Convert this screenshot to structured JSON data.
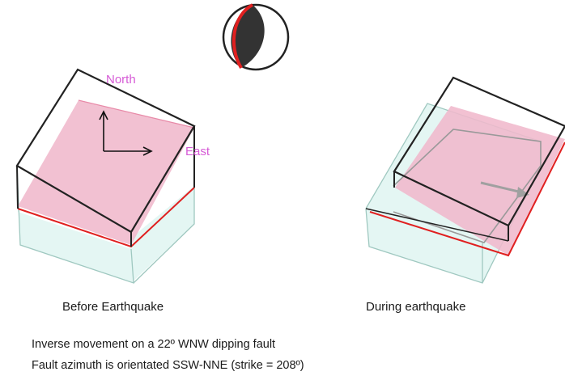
{
  "diagram": {
    "before_caption": "Before Earthquake",
    "during_caption": "During earthquake",
    "north_label": "North",
    "east_label": "East",
    "description": [
      "Inverse movement on a 22º WNW dipping fault",
      "Fault azimuth is orientated SSW-NNE (strike = 208º)"
    ],
    "colors": {
      "fault_plane_fill": "#f0b8cc",
      "fault_plane_edge": "#e02020",
      "block_edge": "#222222",
      "lower_block_fill": "#e4f6f3",
      "lower_block_edge": "#9fc8c0",
      "label_color": "#d65ad6",
      "beachball_dark": "#333333",
      "beachball_red": "#e02020"
    }
  }
}
